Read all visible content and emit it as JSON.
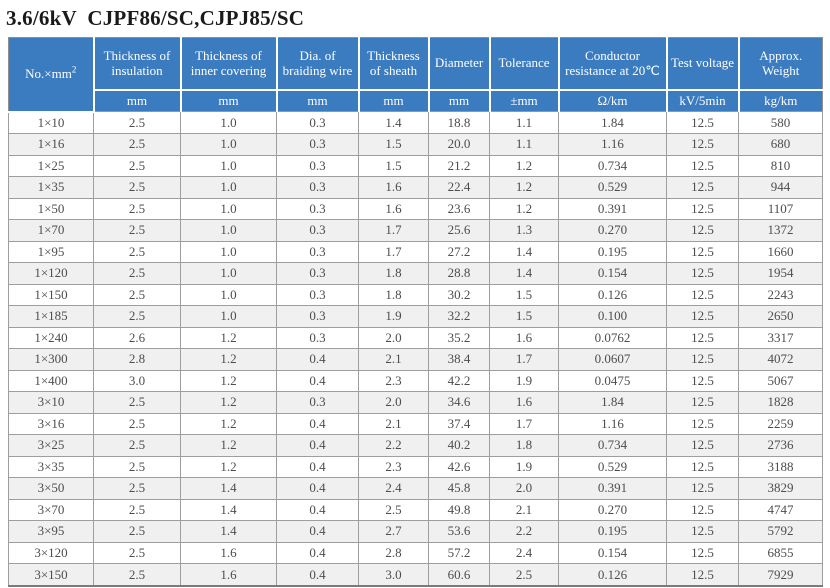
{
  "title": "3.6/6kV  CJPF86/SC,CJPJ85/SC",
  "colors": {
    "header_bg": "#3b7cc0",
    "header_text": "#ffffff",
    "row_stripe": "#f0f0f0",
    "body_text": "#4d4d4d",
    "grid_line": "#9e9e9e"
  },
  "table": {
    "columns": [
      {
        "id": "size",
        "label": "No.×mm",
        "sup": "2",
        "unit": null
      },
      {
        "id": "insulation",
        "label": "Thickness of insulation",
        "unit": "mm"
      },
      {
        "id": "inner_covering",
        "label": "Thickness of inner covering",
        "unit": "mm"
      },
      {
        "id": "braiding_wire",
        "label": "Dia. of braiding wire",
        "unit": "mm"
      },
      {
        "id": "sheath",
        "label": "Thickness of sheath",
        "unit": "mm"
      },
      {
        "id": "diameter",
        "label": "Diameter",
        "unit": "mm"
      },
      {
        "id": "tolerance",
        "label": "Tolerance",
        "unit": "±mm"
      },
      {
        "id": "resistance",
        "label": "Conductor resistance at 20℃",
        "unit": "Ω/km"
      },
      {
        "id": "test_voltage",
        "label": "Test voltage",
        "unit": "kV/5min"
      },
      {
        "id": "weight",
        "label": "Approx. Weight",
        "unit": "kg/km"
      }
    ],
    "rows": [
      [
        "1×10",
        "2.5",
        "1.0",
        "0.3",
        "1.4",
        "18.8",
        "1.1",
        "1.84",
        "12.5",
        "580"
      ],
      [
        "1×16",
        "2.5",
        "1.0",
        "0.3",
        "1.5",
        "20.0",
        "1.1",
        "1.16",
        "12.5",
        "680"
      ],
      [
        "1×25",
        "2.5",
        "1.0",
        "0.3",
        "1.5",
        "21.2",
        "1.2",
        "0.734",
        "12.5",
        "810"
      ],
      [
        "1×35",
        "2.5",
        "1.0",
        "0.3",
        "1.6",
        "22.4",
        "1.2",
        "0.529",
        "12.5",
        "944"
      ],
      [
        "1×50",
        "2.5",
        "1.0",
        "0.3",
        "1.6",
        "23.6",
        "1.2",
        "0.391",
        "12.5",
        "1107"
      ],
      [
        "1×70",
        "2.5",
        "1.0",
        "0.3",
        "1.7",
        "25.6",
        "1.3",
        "0.270",
        "12.5",
        "1372"
      ],
      [
        "1×95",
        "2.5",
        "1.0",
        "0.3",
        "1.7",
        "27.2",
        "1.4",
        "0.195",
        "12.5",
        "1660"
      ],
      [
        "1×120",
        "2.5",
        "1.0",
        "0.3",
        "1.8",
        "28.8",
        "1.4",
        "0.154",
        "12.5",
        "1954"
      ],
      [
        "1×150",
        "2.5",
        "1.0",
        "0.3",
        "1.8",
        "30.2",
        "1.5",
        "0.126",
        "12.5",
        "2243"
      ],
      [
        "1×185",
        "2.5",
        "1.0",
        "0.3",
        "1.9",
        "32.2",
        "1.5",
        "0.100",
        "12.5",
        "2650"
      ],
      [
        "1×240",
        "2.6",
        "1.2",
        "0.3",
        "2.0",
        "35.2",
        "1.6",
        "0.0762",
        "12.5",
        "3317"
      ],
      [
        "1×300",
        "2.8",
        "1.2",
        "0.4",
        "2.1",
        "38.4",
        "1.7",
        "0.0607",
        "12.5",
        "4072"
      ],
      [
        "1×400",
        "3.0",
        "1.2",
        "0.4",
        "2.3",
        "42.2",
        "1.9",
        "0.0475",
        "12.5",
        "5067"
      ],
      [
        "3×10",
        "2.5",
        "1.2",
        "0.3",
        "2.0",
        "34.6",
        "1.6",
        "1.84",
        "12.5",
        "1828"
      ],
      [
        "3×16",
        "2.5",
        "1.2",
        "0.4",
        "2.1",
        "37.4",
        "1.7",
        "1.16",
        "12.5",
        "2259"
      ],
      [
        "3×25",
        "2.5",
        "1.2",
        "0.4",
        "2.2",
        "40.2",
        "1.8",
        "0.734",
        "12.5",
        "2736"
      ],
      [
        "3×35",
        "2.5",
        "1.2",
        "0.4",
        "2.3",
        "42.6",
        "1.9",
        "0.529",
        "12.5",
        "3188"
      ],
      [
        "3×50",
        "2.5",
        "1.4",
        "0.4",
        "2.4",
        "45.8",
        "2.0",
        "0.391",
        "12.5",
        "3829"
      ],
      [
        "3×70",
        "2.5",
        "1.4",
        "0.4",
        "2.5",
        "49.8",
        "2.1",
        "0.270",
        "12.5",
        "4747"
      ],
      [
        "3×95",
        "2.5",
        "1.4",
        "0.4",
        "2.7",
        "53.6",
        "2.2",
        "0.195",
        "12.5",
        "5792"
      ],
      [
        "3×120",
        "2.5",
        "1.6",
        "0.4",
        "2.8",
        "57.2",
        "2.4",
        "0.154",
        "12.5",
        "6855"
      ],
      [
        "3×150",
        "2.5",
        "1.6",
        "0.4",
        "3.0",
        "60.6",
        "2.5",
        "0.126",
        "12.5",
        "7929"
      ]
    ]
  }
}
